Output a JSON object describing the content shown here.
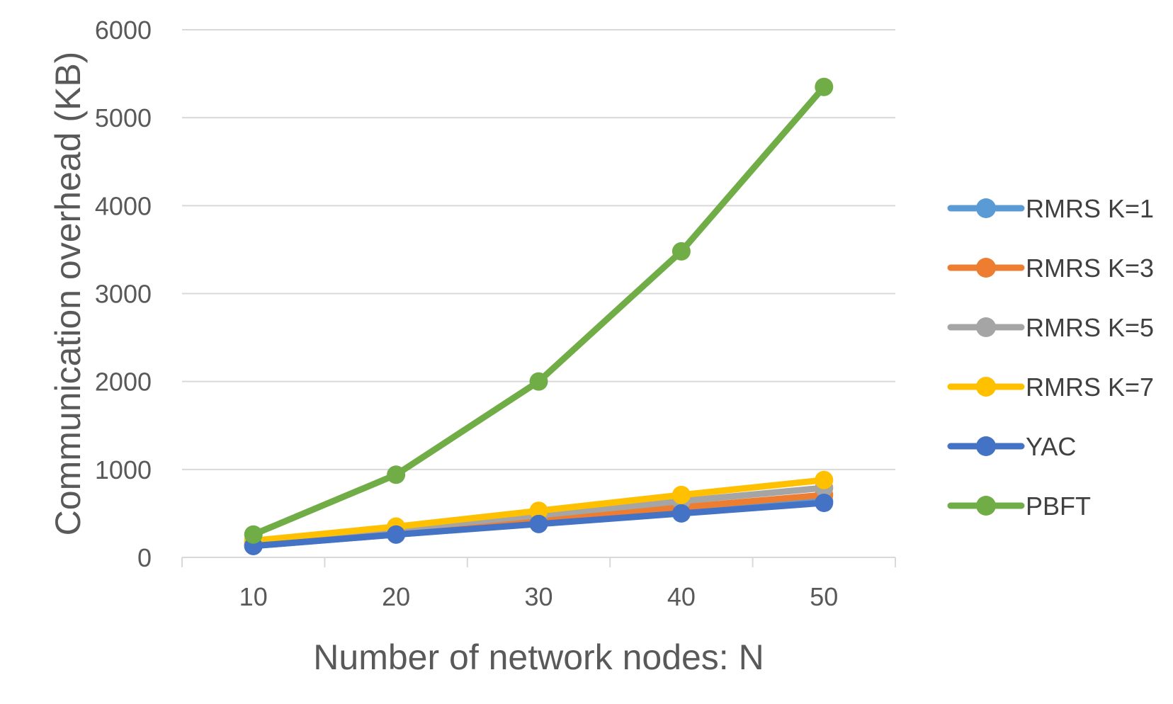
{
  "chart_data": {
    "type": "line",
    "title": "",
    "xlabel": "Number of network nodes: N",
    "ylabel": "Communication overhead (KB)",
    "x": [
      10,
      20,
      30,
      40,
      50
    ],
    "x_tick_labels": [
      "10",
      "20",
      "30",
      "40",
      "50"
    ],
    "y_tick_values": [
      0,
      1000,
      2000,
      3000,
      4000,
      5000,
      6000
    ],
    "y_tick_labels": [
      "0",
      "1000",
      "2000",
      "3000",
      "4000",
      "5000",
      "6000"
    ],
    "ylim": [
      0,
      6000
    ],
    "grid": "horizontal",
    "legend_position": "right",
    "series": [
      {
        "name": "RMRS K=1",
        "color": "#5B9BD5",
        "values": [
          130,
          260,
          390,
          520,
          640
        ]
      },
      {
        "name": "RMRS K=3",
        "color": "#ED7D31",
        "values": [
          150,
          290,
          430,
          570,
          710
        ]
      },
      {
        "name": "RMRS K=5",
        "color": "#A5A5A5",
        "values": [
          170,
          320,
          480,
          640,
          790
        ]
      },
      {
        "name": "RMRS K=7",
        "color": "#FFC000",
        "values": [
          190,
          350,
          530,
          710,
          880
        ]
      },
      {
        "name": "YAC",
        "color": "#4472C4",
        "values": [
          130,
          260,
          380,
          500,
          620
        ]
      },
      {
        "name": "PBFT",
        "color": "#70AD47",
        "values": [
          260,
          940,
          2000,
          3480,
          5350
        ]
      }
    ]
  }
}
